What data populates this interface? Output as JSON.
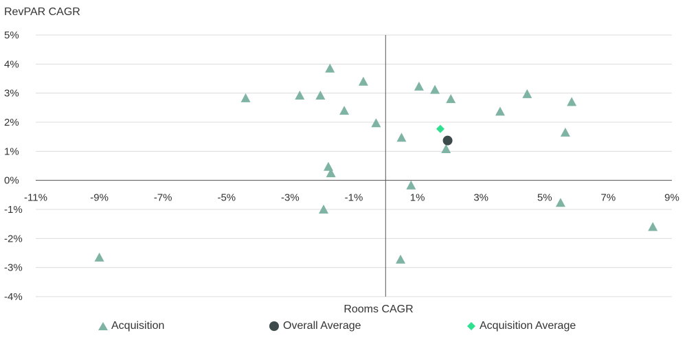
{
  "chart_data": {
    "type": "scatter",
    "xlabel": "Rooms CAGR",
    "ylabel": "RevPAR CAGR",
    "xlim": [
      -11,
      9
    ],
    "ylim": [
      -4,
      5
    ],
    "x_ticks": [
      -11,
      -9,
      -7,
      -5,
      -3,
      -1,
      1,
      3,
      5,
      7,
      9
    ],
    "x_tick_labels": [
      "-11%",
      "-9%",
      "-7%",
      "-5%",
      "-3%",
      "-1%",
      "1%",
      "3%",
      "5%",
      "7%",
      "9%"
    ],
    "y_ticks": [
      5,
      4,
      3,
      2,
      1,
      0,
      -1,
      -2,
      -3,
      -4
    ],
    "y_tick_labels": [
      "5%",
      "4%",
      "3%",
      "2%",
      "1%",
      "0%",
      "-1%",
      "-2%",
      "-3%",
      "-4%"
    ],
    "grid": "horizontal",
    "legend_position": "bottom",
    "series": [
      {
        "name": "Acquisition",
        "marker": "triangle",
        "color": "#7fb3a4",
        "points": [
          {
            "x": -9.0,
            "y": -2.65
          },
          {
            "x": -4.4,
            "y": 2.83
          },
          {
            "x": -2.7,
            "y": 2.92
          },
          {
            "x": -2.05,
            "y": 2.92
          },
          {
            "x": -1.95,
            "y": -1.0
          },
          {
            "x": -1.8,
            "y": 0.47
          },
          {
            "x": -1.72,
            "y": 0.25
          },
          {
            "x": -1.75,
            "y": 3.85
          },
          {
            "x": -1.3,
            "y": 2.4
          },
          {
            "x": -0.7,
            "y": 3.4
          },
          {
            "x": -0.3,
            "y": 1.97
          },
          {
            "x": 0.5,
            "y": 1.47
          },
          {
            "x": 0.47,
            "y": -2.72
          },
          {
            "x": 0.8,
            "y": -0.17
          },
          {
            "x": 1.05,
            "y": 3.23
          },
          {
            "x": 1.55,
            "y": 3.12
          },
          {
            "x": 1.9,
            "y": 1.08
          },
          {
            "x": 2.05,
            "y": 2.8
          },
          {
            "x": 3.6,
            "y": 2.37
          },
          {
            "x": 4.45,
            "y": 2.97
          },
          {
            "x": 5.5,
            "y": -0.77
          },
          {
            "x": 5.65,
            "y": 1.65
          },
          {
            "x": 5.85,
            "y": 2.7
          },
          {
            "x": 8.4,
            "y": -1.6
          }
        ]
      },
      {
        "name": "Overall Average",
        "marker": "circle",
        "color": "#3d4a4c",
        "points": [
          {
            "x": 1.95,
            "y": 1.37
          }
        ]
      },
      {
        "name": "Acquisition Average",
        "marker": "diamond",
        "color": "#2ee08f",
        "points": [
          {
            "x": 1.72,
            "y": 1.77
          }
        ]
      }
    ]
  }
}
